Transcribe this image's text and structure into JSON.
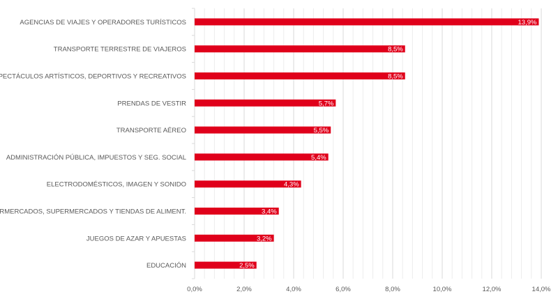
{
  "chart_data": {
    "type": "bar",
    "orientation": "horizontal",
    "categories": [
      "AGENCIAS DE VIAJES Y OPERADORES TURÍSTICOS",
      "TRANSPORTE TERRESTRE DE VIAJEROS",
      "ESPECTÁCULOS ARTÍSTICOS, DEPORTIVOS Y RECREATIVOS",
      "PRENDAS DE VESTIR",
      "TRANSPORTE AÉREO",
      "ADMINISTRACIÓN PÚBLICA, IMPUESTOS Y SEG. SOCIAL",
      "ELECTRODOMÉSTICOS, IMAGEN Y SONIDO",
      "HIPERMERCADOS, SUPERMERCADOS Y TIENDAS DE ALIMENT.",
      "JUEGOS DE AZAR Y APUESTAS",
      "EDUCACIÓN"
    ],
    "values": [
      13.9,
      8.5,
      8.5,
      5.7,
      5.5,
      5.4,
      4.3,
      3.4,
      3.2,
      2.5
    ],
    "data_labels": [
      "13,9%",
      "8,5%",
      "8,5%",
      "5,7%",
      "5,5%",
      "5,4%",
      "4,3%",
      "3,4%",
      "3,2%",
      "2,5%"
    ],
    "xlim": [
      0,
      14
    ],
    "xticks": [
      0,
      2,
      4,
      6,
      8,
      10,
      12,
      14
    ],
    "xtick_labels": [
      "0,0%",
      "2,0%",
      "4,0%",
      "6,0%",
      "8,0%",
      "10,0%",
      "12,0%",
      "14,0%"
    ],
    "minor_grid_step": 0.4,
    "grid": true,
    "title": "",
    "xlabel": "",
    "ylabel": "",
    "bar_color": "#E0001B"
  }
}
